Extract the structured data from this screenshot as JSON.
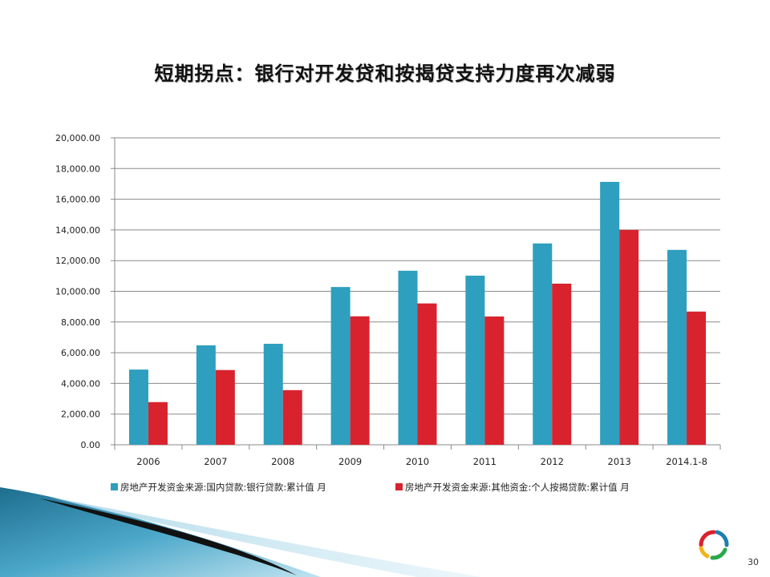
{
  "slide": {
    "title": "短期拐点：银行对开发贷和按揭贷支持力度再次减弱",
    "page_number": "30"
  },
  "colors": {
    "series_1": "#2E9FBE",
    "series_2": "#D8232E",
    "gridline": "#8A8A8A"
  },
  "chart_data": {
    "type": "bar",
    "categories": [
      "2006",
      "2007",
      "2008",
      "2009",
      "2010",
      "2011",
      "2012",
      "2013",
      "2014.1-8"
    ],
    "series": [
      {
        "name": "房地产开发资金来源:国内贷款:银行贷款:累计值 月",
        "values": [
          4900,
          6480,
          6580,
          10280,
          11340,
          11020,
          13120,
          17130,
          12700
        ]
      },
      {
        "name": "房地产开发资金来源:其他资金:个人按揭贷款:累计值 月",
        "values": [
          2780,
          4870,
          3560,
          8370,
          9210,
          8360,
          10500,
          14000,
          8680
        ]
      }
    ],
    "yticks": [
      "0.00",
      "2,000.00",
      "4,000.00",
      "6,000.00",
      "8,000.00",
      "10,000.00",
      "12,000.00",
      "14,000.00",
      "16,000.00",
      "18,000.00",
      "20,000.00"
    ],
    "ylim": [
      0,
      20000
    ],
    "grid": true,
    "legend_position": "bottom"
  }
}
